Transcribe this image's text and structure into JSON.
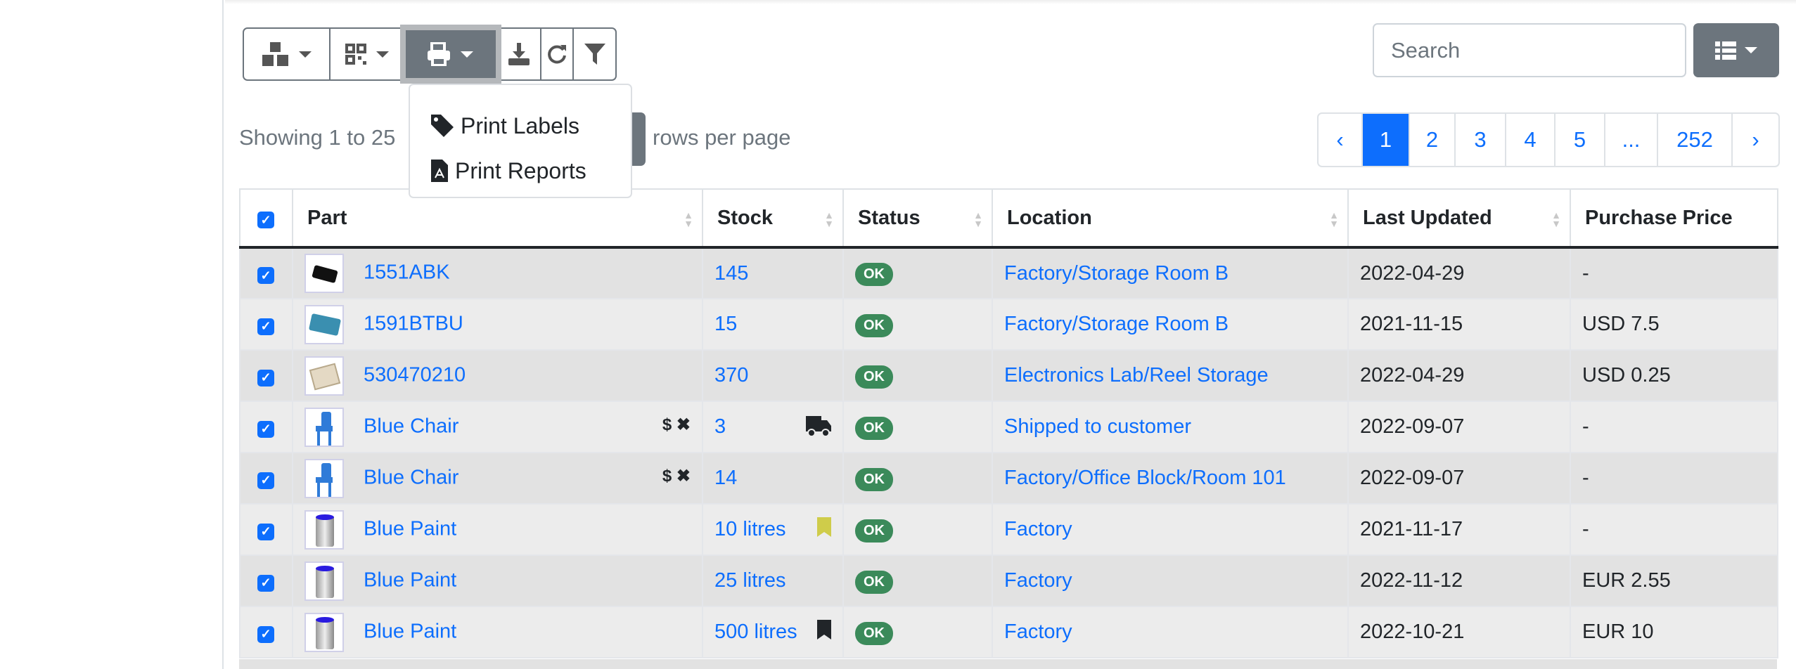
{
  "toolbar": {
    "buttons": [
      {
        "icon": "boxes-icon",
        "dropdown": true
      },
      {
        "icon": "qrcode-icon",
        "dropdown": true
      },
      {
        "icon": "print-icon",
        "dropdown": true,
        "active": true
      },
      {
        "icon": "download-icon"
      },
      {
        "icon": "refresh-icon"
      },
      {
        "icon": "filter-icon"
      }
    ],
    "print_menu": [
      {
        "icon": "tag-icon",
        "label": "Print Labels"
      },
      {
        "icon": "file-pdf-icon",
        "label": "Print Reports"
      }
    ]
  },
  "search": {
    "placeholder": "Search"
  },
  "pagination_info": {
    "showing": "Showing 1 to 25",
    "rows_per_page": "rows per page"
  },
  "pagination": {
    "prev": "‹",
    "pages": [
      "1",
      "2",
      "3",
      "4",
      "5",
      "...",
      "252"
    ],
    "active": "1",
    "next": "›"
  },
  "colors": {
    "accent": "#0d6efd",
    "ok": "#3b8a5a",
    "secondary": "#6c757d"
  },
  "table": {
    "columns": [
      "Part",
      "Stock",
      "Status",
      "Location",
      "Last Updated",
      "Purchase Price"
    ],
    "rows": [
      {
        "part": "1551ABK",
        "thumb": "black-box",
        "stock": "145",
        "status": "OK",
        "location": "Factory/Storage Room B",
        "updated": "2022-04-29",
        "price": "-"
      },
      {
        "part": "1591BTBU",
        "thumb": "blue-box",
        "stock": "15",
        "status": "OK",
        "location": "Factory/Storage Room B",
        "updated": "2021-11-15",
        "price": "USD 7.5"
      },
      {
        "part": "530470210",
        "thumb": "connector",
        "stock": "370",
        "status": "OK",
        "location": "Electronics Lab/Reel Storage",
        "updated": "2022-04-29",
        "price": "USD 0.25"
      },
      {
        "part": "Blue Chair",
        "thumb": "chair",
        "part_icons": "$ ✖",
        "stock": "3",
        "stock_icon": "truck-icon",
        "status": "OK",
        "location": "Shipped to customer",
        "updated": "2022-09-07",
        "price": "-"
      },
      {
        "part": "Blue Chair",
        "thumb": "chair",
        "part_icons": "$ ✖",
        "stock": "14",
        "status": "OK",
        "location": "Factory/Office Block/Room 101",
        "updated": "2022-09-07",
        "price": "-"
      },
      {
        "part": "Blue Paint",
        "thumb": "paint",
        "stock": "10 litres",
        "stock_icon": "bookmark-yellow-icon",
        "status": "OK",
        "location": "Factory",
        "updated": "2021-11-17",
        "price": "-"
      },
      {
        "part": "Blue Paint",
        "thumb": "paint",
        "stock": "25 litres",
        "status": "OK",
        "location": "Factory",
        "updated": "2022-11-12",
        "price": "EUR 2.55"
      },
      {
        "part": "Blue Paint",
        "thumb": "paint",
        "stock": "500 litres",
        "stock_icon": "bookmark-black-icon",
        "status": "OK",
        "location": "Factory",
        "updated": "2022-10-21",
        "price": "EUR 10"
      }
    ]
  }
}
